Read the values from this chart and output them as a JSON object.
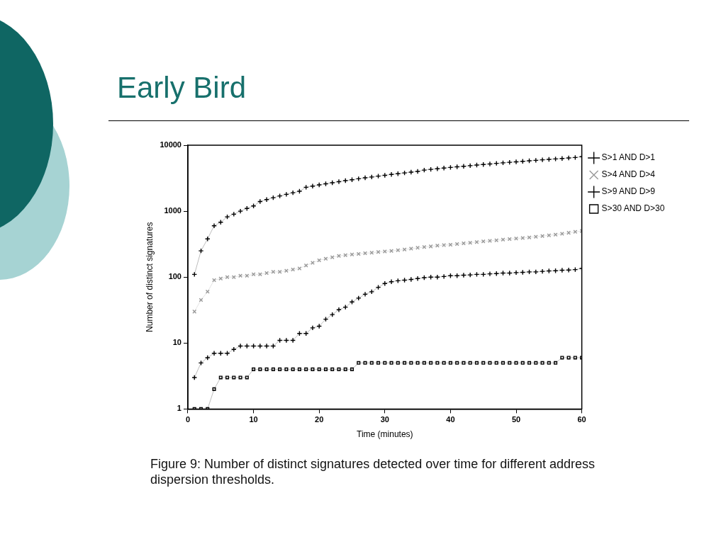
{
  "chart_data": {
    "type": "line",
    "title": "Early Bird",
    "xlabel": "Time (minutes)",
    "ylabel": "Number of distinct signatures",
    "log": "y",
    "grid": false,
    "legend": "top right",
    "xlim": [
      0,
      60
    ],
    "xticks": [
      0,
      10,
      20,
      30,
      40,
      50,
      60
    ],
    "ylim": [
      1,
      10000
    ],
    "yticks": [
      1,
      10,
      100,
      1000,
      10000
    ],
    "x": [
      1,
      2,
      3,
      4,
      5,
      6,
      7,
      8,
      9,
      10,
      11,
      12,
      13,
      14,
      15,
      16,
      17,
      18,
      19,
      20,
      21,
      22,
      23,
      24,
      25,
      26,
      27,
      28,
      29,
      30,
      31,
      32,
      33,
      34,
      35,
      36,
      37,
      38,
      39,
      40,
      41,
      42,
      43,
      44,
      45,
      46,
      47,
      48,
      49,
      50,
      51,
      52,
      53,
      54,
      55,
      56,
      57,
      58,
      59,
      60
    ],
    "series": [
      {
        "name": "S>1 AND D>1",
        "color": "#000000",
        "marker": "cross",
        "values": [
          110,
          250,
          380,
          600,
          680,
          820,
          900,
          1000,
          1100,
          1200,
          1400,
          1500,
          1600,
          1700,
          1800,
          1900,
          2000,
          2300,
          2400,
          2500,
          2600,
          2700,
          2800,
          2900,
          3000,
          3100,
          3200,
          3300,
          3400,
          3500,
          3600,
          3700,
          3800,
          3900,
          4000,
          4200,
          4300,
          4400,
          4500,
          4600,
          4700,
          4800,
          4900,
          5000,
          5100,
          5200,
          5300,
          5400,
          5500,
          5600,
          5700,
          5800,
          5900,
          6000,
          6100,
          6200,
          6300,
          6400,
          6500,
          6700
        ]
      },
      {
        "name": "S>4 AND D>4",
        "color": "#999999",
        "marker": "x",
        "values": [
          30,
          45,
          60,
          90,
          95,
          100,
          100,
          105,
          105,
          110,
          110,
          115,
          120,
          120,
          125,
          130,
          135,
          150,
          165,
          180,
          190,
          200,
          210,
          215,
          220,
          225,
          230,
          235,
          240,
          245,
          250,
          255,
          262,
          270,
          278,
          285,
          292,
          300,
          305,
          310,
          318,
          325,
          332,
          340,
          348,
          355,
          362,
          370,
          378,
          385,
          392,
          400,
          410,
          420,
          430,
          440,
          455,
          470,
          485,
          500
        ]
      },
      {
        "name": "S>9 AND D>9",
        "color": "#000000",
        "marker": "cross",
        "values": [
          3,
          5,
          6,
          7,
          7,
          7,
          8,
          9,
          9,
          9,
          9,
          9,
          9,
          11,
          11,
          11,
          14,
          14,
          17,
          18,
          23,
          27,
          32,
          35,
          42,
          48,
          55,
          60,
          70,
          80,
          85,
          88,
          90,
          92,
          95,
          98,
          100,
          100,
          102,
          105,
          105,
          107,
          108,
          110,
          110,
          112,
          113,
          115,
          115,
          117,
          118,
          120,
          120,
          122,
          124,
          125,
          127,
          128,
          130,
          135
        ]
      },
      {
        "name": "S>30 AND D>30",
        "color": "#000000",
        "marker": "square",
        "values": [
          1,
          1,
          1,
          2,
          3,
          3,
          3,
          3,
          3,
          4,
          4,
          4,
          4,
          4,
          4,
          4,
          4,
          4,
          4,
          4,
          4,
          4,
          4,
          4,
          4,
          5,
          5,
          5,
          5,
          5,
          5,
          5,
          5,
          5,
          5,
          5,
          5,
          5,
          5,
          5,
          5,
          5,
          5,
          5,
          5,
          5,
          5,
          5,
          5,
          5,
          5,
          5,
          5,
          5,
          5,
          5,
          6,
          6,
          6,
          6
        ]
      }
    ],
    "annotations": [
      "Figure 9: Number of distinct signatures detected over time for different address dispersion thresholds."
    ]
  }
}
